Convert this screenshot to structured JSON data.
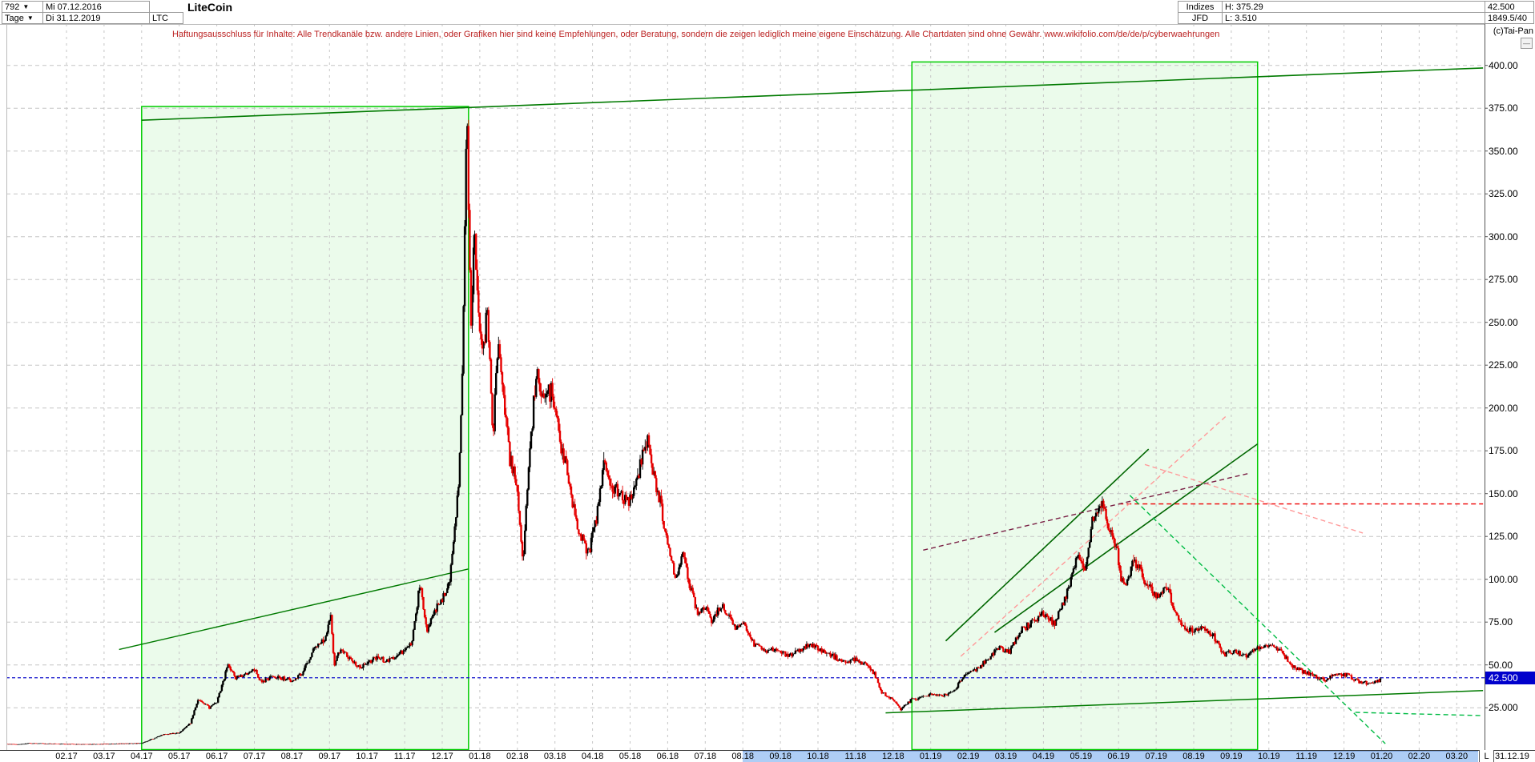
{
  "header": {
    "bars_count": "792",
    "period": "Tage",
    "date_from": "Mi 07.12.2016",
    "date_to": "Di 31.12.2019",
    "symbol": "LTC",
    "title": "LiteCoin",
    "indizes_label": "Indizes",
    "broker": "JFD",
    "high_label": "H: 375.29",
    "low_label": "L: 3.510",
    "last_price": "42.500",
    "quote_info": "1849.5/40",
    "copyright": "(c)Tai-Pan",
    "collapse_glyph": "—"
  },
  "disclaimer": "Haftungsausschluss für Inhalte: Alle Trendkanäle bzw. andere Linien, oder Grafiken hier sind keine Empfehlungen, oder Beratung, sondern die zeigen lediglich meine eigene Einschätzung. Alle Chartdaten sind ohne Gewähr.  www.wikifolio.com/de/de/p/cyberwaehrungen",
  "x_axis": {
    "labels": [
      "02.17",
      "03.17",
      "04.17",
      "05.17",
      "06.17",
      "07.17",
      "08.17",
      "09.17",
      "10.17",
      "11.17",
      "12.17",
      "01.18",
      "02.18",
      "03.18",
      "04.18",
      "05.18",
      "06.18",
      "07.18",
      "08.18",
      "09.18",
      "10.18",
      "11.18",
      "12.18",
      "01.19",
      "02.19",
      "03.19",
      "04.19",
      "05.19",
      "06.19",
      "07.19",
      "08.19",
      "09.19",
      "10.19",
      "11.19",
      "12.19",
      "01.20",
      "02.20",
      "03.20"
    ],
    "highlight_from_label": "08.18",
    "highlight_to_label": "03.20",
    "last_bar_marker": "L",
    "end_date": "31.12.19"
  },
  "y_axis": {
    "labels": [
      "400.00",
      "375.00",
      "350.00",
      "325.00",
      "300.00",
      "275.00",
      "250.00",
      "225.00",
      "200.00",
      "175.00",
      "150.00",
      "125.00",
      "100.00",
      "75.00",
      "50.00",
      "25.000"
    ],
    "marker_label": "42.500"
  },
  "chart_data": {
    "type": "candlestick",
    "title": "LiteCoin",
    "symbol": "LTC",
    "timeframe": "Tage",
    "period_start": "07.12.2016",
    "period_end": "31.12.2019",
    "high": 375.29,
    "low": 3.51,
    "last": 42.5,
    "ylim": [
      0,
      412
    ],
    "y_gridline_step": 25,
    "grid": true,
    "colors": {
      "up_candle": "#000000",
      "down_candle": "#e60000",
      "box_fill": "#00c800",
      "box_border": "#00cc00",
      "trend_green": "#007a00",
      "marker_blue": "#1111cc",
      "grid": "#c6c6c6"
    },
    "marker_price": 42.5,
    "price_anchors_note": "t = months since 01.12.2016; p = price; daily candles are interpolated through these anchor closes",
    "price_anchors": [
      [
        0.4,
        3.9
      ],
      [
        0.7,
        3.6
      ],
      [
        1.0,
        4.3
      ],
      [
        1.5,
        4.1
      ],
      [
        2.0,
        3.8
      ],
      [
        2.5,
        3.7
      ],
      [
        3.0,
        3.9
      ],
      [
        3.5,
        4.1
      ],
      [
        4.0,
        4.3
      ],
      [
        4.3,
        7.0
      ],
      [
        4.6,
        9.5
      ],
      [
        5.0,
        10.3
      ],
      [
        5.3,
        16.0
      ],
      [
        5.5,
        30.0
      ],
      [
        5.8,
        25.0
      ],
      [
        6.0,
        28.0
      ],
      [
        6.3,
        50.0
      ],
      [
        6.5,
        42.0
      ],
      [
        6.8,
        45.0
      ],
      [
        7.0,
        47.0
      ],
      [
        7.2,
        40.0
      ],
      [
        7.5,
        43.0
      ],
      [
        7.8,
        42.0
      ],
      [
        8.0,
        41.0
      ],
      [
        8.3,
        46.0
      ],
      [
        8.6,
        60.0
      ],
      [
        8.9,
        66.0
      ],
      [
        9.03,
        80.0
      ],
      [
        9.12,
        50.0
      ],
      [
        9.3,
        60.0
      ],
      [
        9.5,
        55.0
      ],
      [
        9.8,
        48.0
      ],
      [
        10.0,
        51.0
      ],
      [
        10.3,
        55.0
      ],
      [
        10.5,
        52.0
      ],
      [
        10.8,
        56.0
      ],
      [
        11.0,
        59.0
      ],
      [
        11.2,
        63.0
      ],
      [
        11.4,
        97.0
      ],
      [
        11.6,
        70.0
      ],
      [
        11.8,
        82.0
      ],
      [
        12.0,
        88.0
      ],
      [
        12.2,
        100.0
      ],
      [
        12.45,
        160.0
      ],
      [
        12.55,
        230.0
      ],
      [
        12.62,
        330.0
      ],
      [
        12.66,
        375.0
      ],
      [
        12.72,
        290.0
      ],
      [
        12.78,
        245.0
      ],
      [
        12.85,
        305.0
      ],
      [
        12.95,
        262.0
      ],
      [
        13.05,
        230.0
      ],
      [
        13.2,
        255.0
      ],
      [
        13.35,
        185.0
      ],
      [
        13.5,
        240.0
      ],
      [
        13.65,
        205.0
      ],
      [
        13.8,
        170.0
      ],
      [
        13.95,
        160.0
      ],
      [
        14.15,
        110.0
      ],
      [
        14.3,
        165.0
      ],
      [
        14.5,
        220.0
      ],
      [
        14.7,
        205.0
      ],
      [
        14.9,
        210.0
      ],
      [
        15.1,
        185.0
      ],
      [
        15.3,
        165.0
      ],
      [
        15.5,
        140.0
      ],
      [
        15.7,
        125.0
      ],
      [
        15.9,
        115.0
      ],
      [
        16.1,
        135.0
      ],
      [
        16.3,
        170.0
      ],
      [
        16.5,
        155.0
      ],
      [
        16.7,
        150.0
      ],
      [
        16.9,
        145.0
      ],
      [
        17.1,
        150.0
      ],
      [
        17.3,
        170.0
      ],
      [
        17.45,
        182.0
      ],
      [
        17.6,
        165.0
      ],
      [
        17.8,
        145.0
      ],
      [
        18.0,
        120.0
      ],
      [
        18.2,
        100.0
      ],
      [
        18.4,
        115.0
      ],
      [
        18.6,
        95.0
      ],
      [
        18.8,
        80.0
      ],
      [
        19.0,
        83.0
      ],
      [
        19.2,
        75.0
      ],
      [
        19.4,
        85.0
      ],
      [
        19.6,
        80.0
      ],
      [
        19.8,
        72.0
      ],
      [
        20.0,
        75.0
      ],
      [
        20.3,
        62.0
      ],
      [
        20.6,
        58.0
      ],
      [
        20.9,
        60.0
      ],
      [
        21.2,
        55.0
      ],
      [
        21.5,
        58.0
      ],
      [
        21.8,
        62.0
      ],
      [
        22.1,
        58.0
      ],
      [
        22.4,
        55.0
      ],
      [
        22.7,
        52.0
      ],
      [
        23.0,
        53.0
      ],
      [
        23.3,
        50.0
      ],
      [
        23.5,
        45.0
      ],
      [
        23.7,
        34.0
      ],
      [
        24.0,
        30.0
      ],
      [
        24.2,
        24.0
      ],
      [
        24.5,
        30.0
      ],
      [
        24.8,
        31.0
      ],
      [
        25.0,
        33.0
      ],
      [
        25.3,
        32.0
      ],
      [
        25.6,
        34.0
      ],
      [
        25.9,
        45.0
      ],
      [
        26.2,
        47.0
      ],
      [
        26.5,
        53.0
      ],
      [
        26.8,
        60.0
      ],
      [
        27.1,
        58.0
      ],
      [
        27.4,
        70.0
      ],
      [
        27.7,
        75.0
      ],
      [
        28.0,
        80.0
      ],
      [
        28.3,
        74.0
      ],
      [
        28.6,
        90.0
      ],
      [
        28.9,
        114.0
      ],
      [
        29.1,
        105.0
      ],
      [
        29.3,
        133.0
      ],
      [
        29.45,
        138.0
      ],
      [
        29.55,
        146.0
      ],
      [
        29.65,
        136.0
      ],
      [
        29.8,
        128.0
      ],
      [
        29.95,
        118.0
      ],
      [
        30.05,
        102.0
      ],
      [
        30.2,
        96.0
      ],
      [
        30.35,
        108.0
      ],
      [
        30.5,
        110.0
      ],
      [
        30.7,
        98.0
      ],
      [
        31.0,
        90.0
      ],
      [
        31.3,
        95.0
      ],
      [
        31.6,
        75.0
      ],
      [
        31.9,
        70.0
      ],
      [
        32.2,
        72.0
      ],
      [
        32.5,
        68.0
      ],
      [
        32.8,
        56.0
      ],
      [
        33.1,
        58.0
      ],
      [
        33.4,
        55.0
      ],
      [
        33.7,
        60.0
      ],
      [
        34.0,
        62.0
      ],
      [
        34.3,
        58.0
      ],
      [
        34.6,
        50.0
      ],
      [
        34.9,
        46.0
      ],
      [
        35.2,
        44.0
      ],
      [
        35.5,
        41.0
      ],
      [
        35.8,
        45.0
      ],
      [
        36.1,
        44.0
      ],
      [
        36.4,
        40.0
      ],
      [
        36.7,
        39.0
      ],
      [
        37.0,
        41.5
      ]
    ],
    "boxes": [
      {
        "name": "zoom-box-2017",
        "t1": 4.0,
        "t2": 12.7,
        "p_top": 376,
        "p_bottom": 0
      },
      {
        "name": "zoom-box-2019",
        "t1": 24.5,
        "t2": 33.7,
        "p_top": 402,
        "p_bottom": 0
      }
    ],
    "trendlines": [
      {
        "name": "upper-channel-long",
        "color": "#007a00",
        "width": 1.6,
        "dash": null,
        "from": [
          4.0,
          368
        ],
        "to": [
          39.7,
          398.5
        ]
      },
      {
        "name": "lower-channel-2017",
        "color": "#007a00",
        "width": 1.4,
        "dash": null,
        "from": [
          3.4,
          59
        ],
        "to": [
          12.7,
          106
        ]
      },
      {
        "name": "long-support-rising",
        "color": "#007a00",
        "width": 1.5,
        "dash": null,
        "from": [
          23.8,
          22
        ],
        "to": [
          39.7,
          35
        ]
      },
      {
        "name": "steep-trend-2019-a",
        "color": "#006600",
        "width": 1.6,
        "dash": null,
        "from": [
          25.4,
          64
        ],
        "to": [
          30.8,
          176
        ]
      },
      {
        "name": "trend-2019-b",
        "color": "#006600",
        "width": 1.6,
        "dash": null,
        "from": [
          26.7,
          69
        ],
        "to": [
          33.7,
          179
        ]
      },
      {
        "name": "resistance-144-red",
        "color": "#ee0000",
        "width": 1.4,
        "dash": "6 4",
        "from": [
          30.0,
          144
        ],
        "to": [
          39.7,
          144
        ]
      },
      {
        "name": "maroon-rising-dashed",
        "color": "#7a2045",
        "width": 1.4,
        "dash": "6 4",
        "from": [
          24.8,
          117
        ],
        "to": [
          33.5,
          162
        ]
      },
      {
        "name": "pink-steep-dashed",
        "color": "#ff9a9a",
        "width": 1.4,
        "dash": "6 4",
        "from": [
          25.8,
          55
        ],
        "to": [
          32.9,
          196
        ]
      },
      {
        "name": "pink-falling-dashed",
        "color": "#ff9a9a",
        "width": 1.4,
        "dash": "6 4",
        "from": [
          30.7,
          167
        ],
        "to": [
          36.5,
          127
        ]
      },
      {
        "name": "green-falling-dashed",
        "color": "#00bb44",
        "width": 1.4,
        "dash": "6 4",
        "from": [
          30.3,
          149
        ],
        "to": [
          37.1,
          4
        ]
      },
      {
        "name": "green-flat-support-dashed",
        "color": "#00bb44",
        "width": 1.4,
        "dash": "6 4",
        "from": [
          36.3,
          22.3
        ],
        "to": [
          39.7,
          20.4
        ]
      }
    ]
  }
}
